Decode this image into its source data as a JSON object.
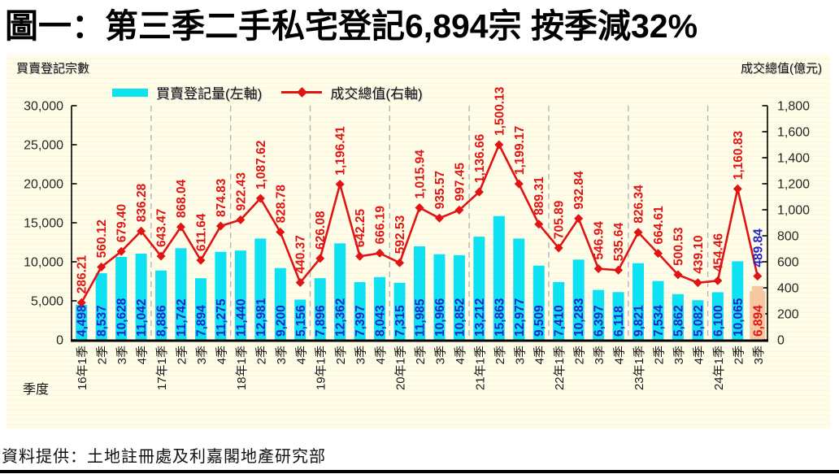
{
  "title": "圖一：第三季二手私宅登記6,894宗  按季減32%",
  "footer": "資料提供：土地註冊處及利嘉閣地產研究部",
  "chart": {
    "left_axis_title": "買賣登記宗數",
    "right_axis_title": "成交總值(億元)",
    "x_axis_title": "季度",
    "legend": [
      {
        "label": "買賣登記量(左軸)",
        "swatch": "cyan-bar"
      },
      {
        "label": "成交總值(右軸)",
        "swatch": "red-line-diamond"
      }
    ]
  },
  "chart_data": {
    "type": "bar",
    "subtype": "bar+line dual axis",
    "categories": [
      "16年1季",
      "2季",
      "3季",
      "4季",
      "17年1季",
      "2季",
      "3季",
      "4季",
      "18年1季",
      "2季",
      "3季",
      "4季",
      "19年1季",
      "2季",
      "3季",
      "4季",
      "20年1季",
      "2季",
      "3季",
      "4季",
      "21年1季",
      "2季",
      "3季",
      "4季",
      "22年1季",
      "2季",
      "3季",
      "4季",
      "23年1季",
      "2季",
      "3季",
      "4季",
      "24年1季",
      "2季",
      "3季"
    ],
    "series": [
      {
        "name": "買賣登記量(左軸)",
        "type": "bar",
        "axis": "left",
        "values": [
          4498,
          8537,
          10628,
          11042,
          8886,
          11742,
          7894,
          11275,
          11440,
          12981,
          9200,
          5156,
          7896,
          12362,
          7397,
          8043,
          7315,
          11985,
          10966,
          10852,
          13212,
          15863,
          12977,
          9509,
          7410,
          10283,
          6397,
          6118,
          9821,
          7534,
          5862,
          5082,
          6100,
          10065,
          6894
        ]
      },
      {
        "name": "成交總值(右軸)",
        "type": "line",
        "axis": "right",
        "values": [
          286.21,
          560.12,
          679.4,
          836.28,
          643.47,
          868.04,
          611.64,
          874.83,
          922.43,
          1087.62,
          828.78,
          440.37,
          626.08,
          1196.41,
          642.25,
          666.19,
          592.53,
          1015.94,
          935.57,
          997.45,
          1136.66,
          1500.13,
          1199.17,
          889.31,
          705.89,
          932.84,
          546.94,
          535.64,
          826.34,
          664.61,
          500.53,
          439.1,
          454.46,
          1160.83,
          489.84
        ]
      }
    ],
    "left_ylim": [
      0,
      30000
    ],
    "left_tick_step": 5000,
    "left_tick_labels": [
      "0",
      "5,000",
      "10,000",
      "15,000",
      "20,000",
      "25,000",
      "30,000"
    ],
    "right_ylim": [
      0,
      1800
    ],
    "right_tick_step": 200,
    "right_tick_labels": [
      "0",
      "200",
      "400",
      "600",
      "800",
      "1,000",
      "1,200",
      "1,400",
      "1,600",
      "1,800"
    ],
    "year_separator_indices": [
      4,
      8,
      12,
      16,
      20,
      24,
      28,
      32
    ],
    "highlight_last_bar": true,
    "colors": {
      "bar_fill": "#0ee1f2",
      "bar_label": "#2222cc",
      "line_stroke": "#e01414",
      "line_label": "#e01414",
      "highlight_bar_fill": "#f5c8a2",
      "highlight_bar_label": "#e01414",
      "last_line_label": "#2222cc",
      "year_separator": "#b5b5b5",
      "axis": "#000000",
      "tick_label": "#262626",
      "panel_background": "#fffde9"
    },
    "legend_position": "top-center",
    "grid": "vertical dashed year separators only"
  }
}
